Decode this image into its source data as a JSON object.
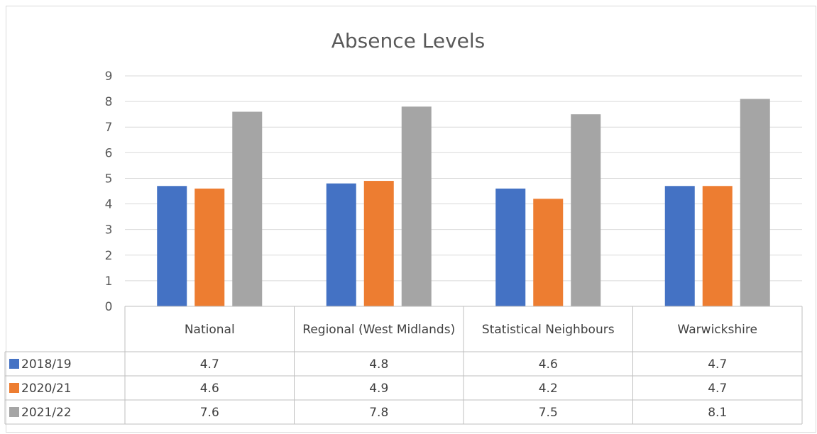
{
  "chart_data": {
    "type": "bar",
    "title": "Absence Levels",
    "categories": [
      "National",
      "Regional (West Midlands)",
      "Statistical Neighbours",
      "Warwickshire"
    ],
    "series": [
      {
        "name": "2018/19",
        "values": [
          4.7,
          4.8,
          4.6,
          4.7
        ]
      },
      {
        "name": "2020/21",
        "values": [
          4.6,
          4.9,
          4.2,
          4.7
        ]
      },
      {
        "name": "2021/22",
        "values": [
          7.6,
          7.8,
          7.5,
          8.1
        ]
      }
    ],
    "ylim": [
      0,
      9
    ],
    "yticks": [
      0,
      1,
      2,
      3,
      4,
      5,
      6,
      7,
      8,
      9
    ],
    "grid": true,
    "legend": "data-table",
    "colors": [
      "#4472c4",
      "#ed7d31",
      "#a5a5a5"
    ]
  }
}
